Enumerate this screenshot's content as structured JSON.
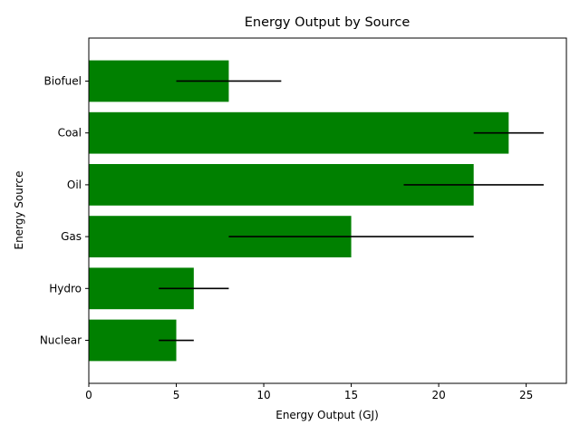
{
  "chart_data": {
    "type": "bar",
    "orientation": "horizontal",
    "title": "Energy Output by Source",
    "xlabel": "Energy Output (GJ)",
    "ylabel": "Energy Source",
    "categories": [
      "Nuclear",
      "Hydro",
      "Gas",
      "Oil",
      "Coal",
      "Biofuel"
    ],
    "values": [
      5,
      6,
      15,
      22,
      24,
      8
    ],
    "error_low": [
      1,
      2,
      7,
      4,
      2,
      3
    ],
    "error_high": [
      1,
      2,
      7,
      4,
      2,
      3
    ],
    "xlim": [
      0,
      27.3
    ],
    "xticks": [
      0,
      5,
      10,
      15,
      20,
      25
    ],
    "bar_color": "#008000",
    "error_color": "#000000",
    "grid": false
  }
}
